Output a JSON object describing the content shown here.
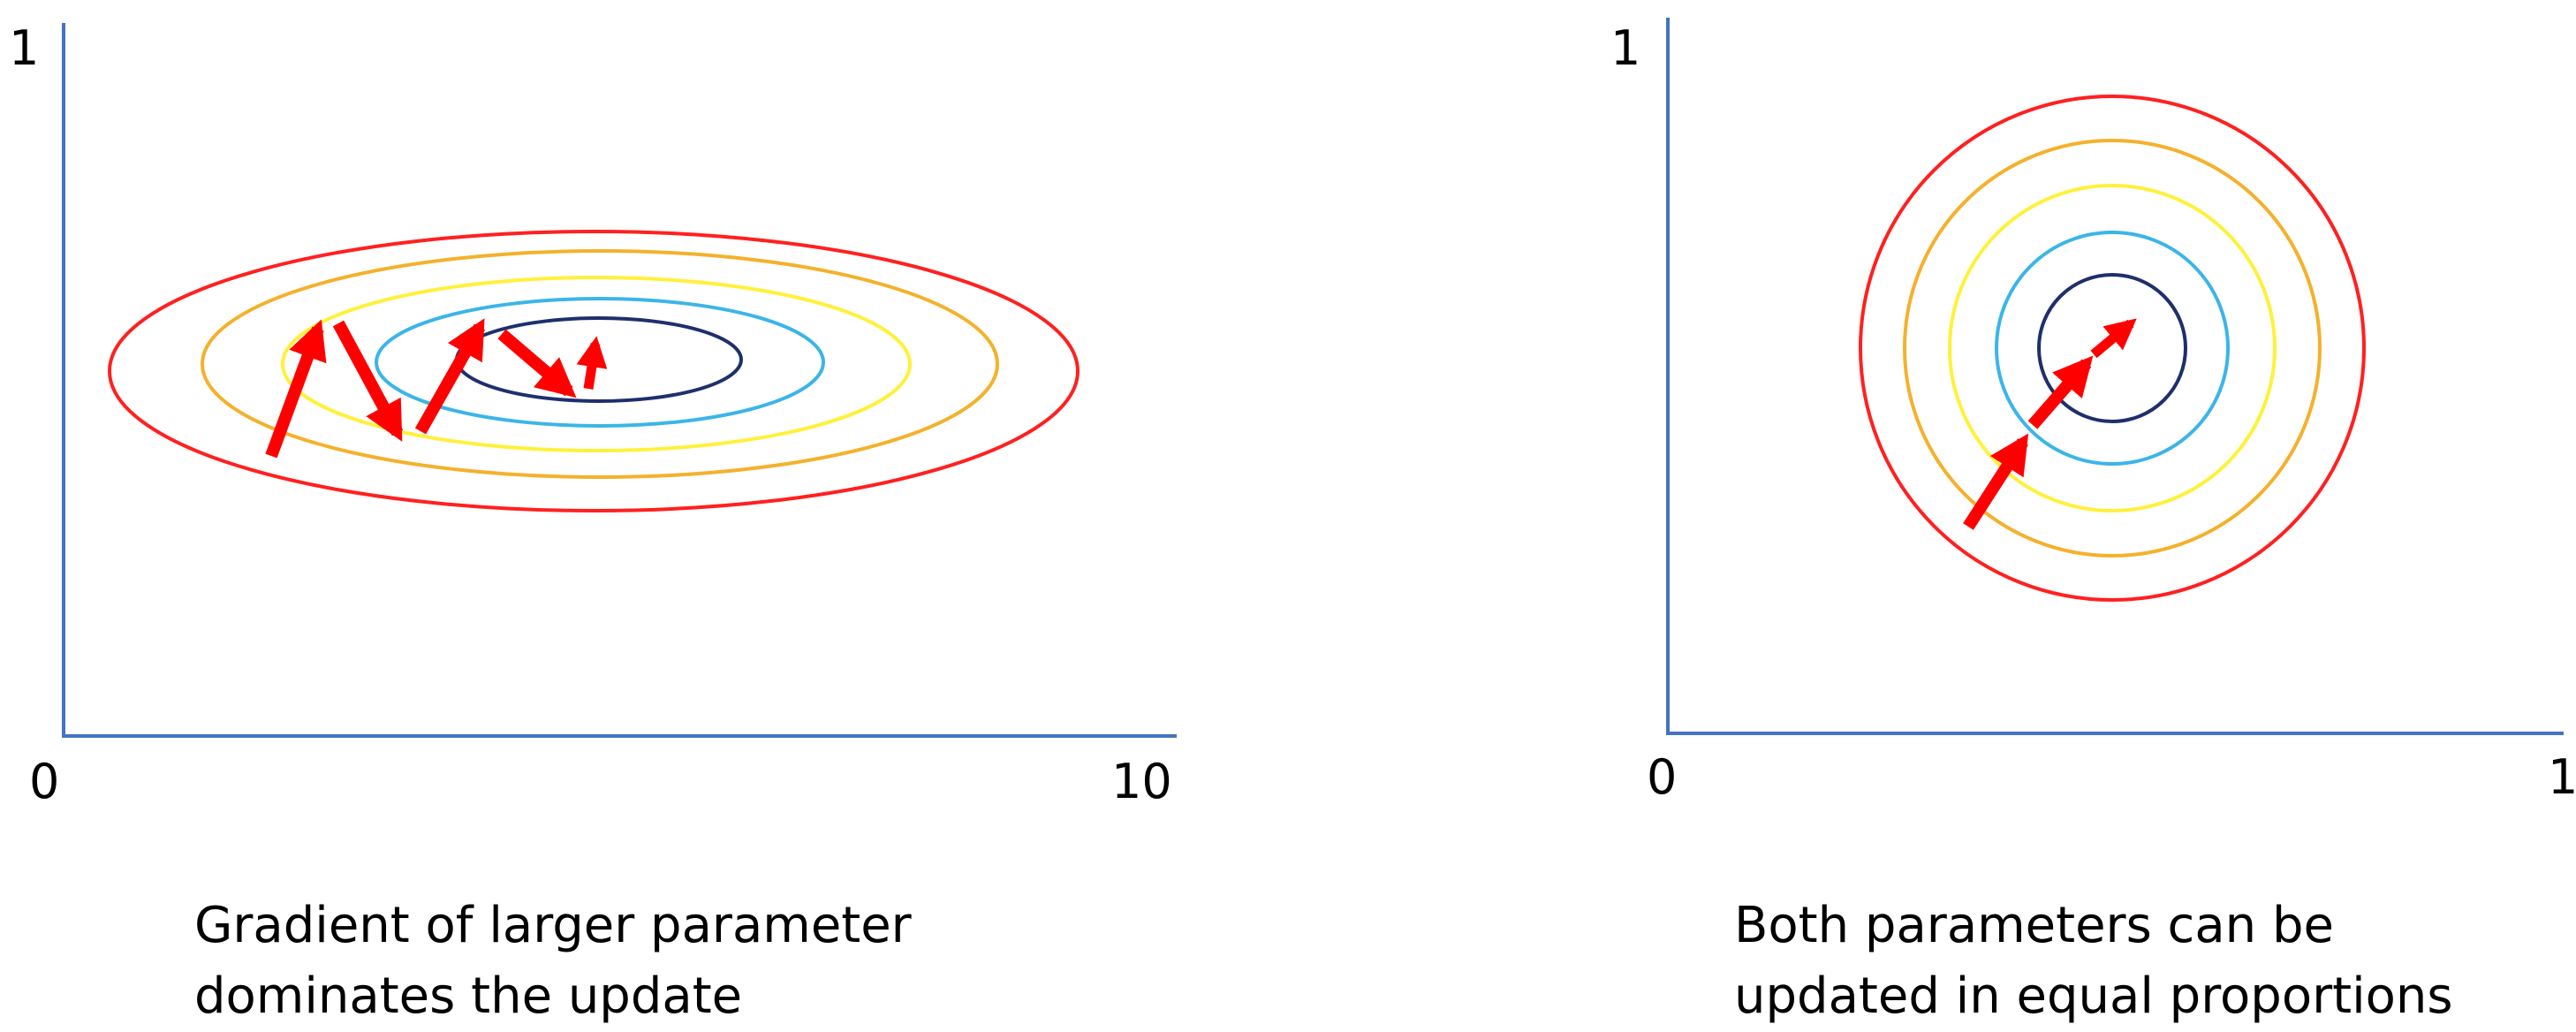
{
  "colors": {
    "axis": "#4472C4",
    "arrow": "#FF0000",
    "contours": [
      "#FF2020",
      "#F4B12C",
      "#FFF13A",
      "#3BB5E8",
      "#1E2F6C"
    ]
  },
  "panels": [
    {
      "x_min": "0",
      "x_max": "10",
      "y_max": "1",
      "caption": [
        "Gradient of larger parameter",
        "dominates the update"
      ]
    },
    {
      "x_min": "0",
      "x_max": "1",
      "y_max": "1",
      "caption": [
        "Both parameters can be",
        "updated in equal proportions"
      ]
    }
  ]
}
